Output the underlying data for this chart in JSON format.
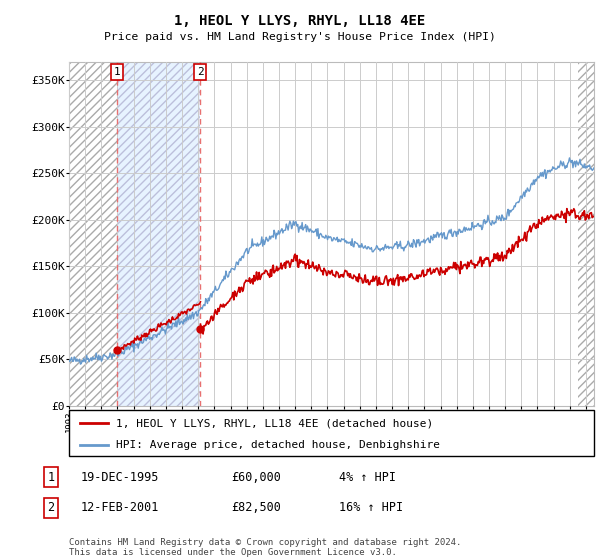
{
  "title": "1, HEOL Y LLYS, RHYL, LL18 4EE",
  "subtitle": "Price paid vs. HM Land Registry's House Price Index (HPI)",
  "ylim": [
    0,
    370000
  ],
  "yticks": [
    0,
    50000,
    100000,
    150000,
    200000,
    250000,
    300000,
    350000
  ],
  "ytick_labels": [
    "£0",
    "£50K",
    "£100K",
    "£150K",
    "£200K",
    "£250K",
    "£300K",
    "£350K"
  ],
  "grid_color": "#cccccc",
  "sale1_date": 1995.96,
  "sale1_price": 60000,
  "sale2_date": 2001.12,
  "sale2_price": 82500,
  "vline_color": "#e87070",
  "marker_color": "#cc0000",
  "hpi_line_color": "#6699cc",
  "price_line_color": "#cc0000",
  "legend_line1": "1, HEOL Y LLYS, RHYL, LL18 4EE (detached house)",
  "legend_line2": "HPI: Average price, detached house, Denbighshire",
  "table_rows": [
    {
      "num": "1",
      "date": "19-DEC-1995",
      "price": "£60,000",
      "hpi": "4% ↑ HPI"
    },
    {
      "num": "2",
      "date": "12-FEB-2001",
      "price": "£82,500",
      "hpi": "16% ↑ HPI"
    }
  ],
  "footnote": "Contains HM Land Registry data © Crown copyright and database right 2024.\nThis data is licensed under the Open Government Licence v3.0.",
  "xmin": 1993,
  "xmax": 2025.5,
  "hatch_right_start": 2024.5
}
